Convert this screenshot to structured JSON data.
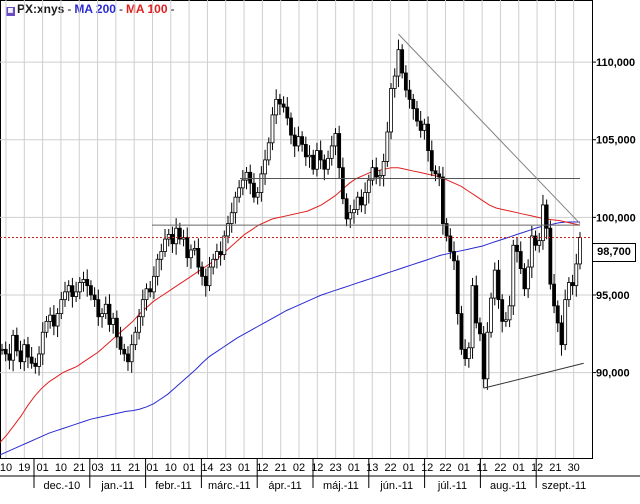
{
  "chart_data": {
    "type": "candlestick",
    "instrument": "PX:xnys",
    "last_price_label": "98,700",
    "yaxis": {
      "ticks": [
        90000,
        95000,
        100000,
        105000,
        110000
      ],
      "tick_labels": [
        "90,000",
        "95,000",
        "100,000",
        "105,000",
        "110,000"
      ],
      "ylim": [
        84500,
        114000
      ],
      "position": "right"
    },
    "xaxis": {
      "day_labels": [
        "10",
        "19",
        "01",
        "10",
        "21",
        "03",
        "11",
        "21",
        "01",
        "10",
        "01",
        "14",
        "23",
        "01",
        "12",
        "21",
        "02",
        "12",
        "23",
        "01",
        "13",
        "22",
        "01",
        "12",
        "22",
        "01",
        "11",
        "22",
        "01",
        "12",
        "21",
        "30"
      ],
      "month_labels": [
        "dec.-10",
        "jan.-11",
        "febr.-11",
        "márc.-11",
        "ápr.-11",
        "máj.-11",
        "jún.-11",
        "júl.-11",
        "aug.-11",
        "szept.-11"
      ]
    },
    "grid": true,
    "colors": {
      "candle": "#000000",
      "ma200": "#2a2ad4",
      "ma100": "#e02020",
      "level": "#cc2020",
      "trend": "#808080"
    },
    "series": [
      {
        "name": "",
        "type": "ohlc",
        "close": [
          91500,
          91200,
          90800,
          92400,
          91400,
          90700,
          91800,
          91000,
          90600,
          90400,
          91200,
          92600,
          93300,
          93700,
          93000,
          93800,
          94700,
          95200,
          95600,
          94900,
          95200,
          95800,
          96000,
          95600,
          95000,
          94700,
          93600,
          93800,
          94400,
          93100,
          93500,
          92300,
          91500,
          91200,
          90700,
          91800,
          92600,
          93600,
          94700,
          95400,
          95200,
          96200,
          97300,
          97800,
          98600,
          98900,
          98300,
          99300,
          98600,
          98700,
          97400,
          97900,
          98000,
          96800,
          96200,
          95600,
          96800,
          97300,
          97800,
          97600,
          98800,
          99600,
          100300,
          101300,
          101900,
          102400,
          102900,
          102200,
          101300,
          101600,
          102800,
          103700,
          104800,
          106600,
          107600,
          107300,
          107100,
          106400,
          105300,
          104600,
          105200,
          104700,
          103900,
          104000,
          103100,
          104300,
          103700,
          103100,
          103800,
          104600,
          105400,
          103200,
          101200,
          99900,
          100300,
          100500,
          101300,
          100800,
          101600,
          102400,
          103200,
          102600,
          102700,
          103600,
          105500,
          108300,
          109100,
          110800,
          109300,
          108200,
          107600,
          107000,
          106200,
          105600,
          106000,
          104300,
          103000,
          102800,
          102600,
          99600,
          98800,
          97800,
          97200,
          93800,
          91500,
          90900,
          91600,
          95600,
          93200,
          92500,
          89600,
          92600,
          94800,
          96600,
          94700,
          93300,
          93400,
          94300,
          98200,
          97800,
          96700,
          95400,
          96800,
          98800,
          98200,
          98500,
          100800,
          99300,
          95700,
          94300,
          93200,
          91800,
          94700,
          95800,
          95600,
          97000,
          98700
        ]
      },
      {
        "name": "MA 200",
        "close": [
          84700,
          84900,
          85100,
          85300,
          85500,
          85700,
          85900,
          86100,
          86250,
          86400,
          86550,
          86700,
          86850,
          87000,
          87100,
          87200,
          87300,
          87400,
          87500,
          87550,
          87650,
          87800,
          88000,
          88300,
          88600,
          89000,
          89400,
          89800,
          90200,
          90650,
          91050,
          91350,
          91650,
          91950,
          92250,
          92500,
          92750,
          93000,
          93250,
          93500,
          93750,
          94000,
          94200,
          94400,
          94600,
          94800,
          95000,
          95150,
          95300,
          95450,
          95600,
          95750,
          95900,
          96050,
          96200,
          96350,
          96500,
          96650,
          96800,
          96950,
          97100,
          97250,
          97400,
          97550,
          97650,
          97750,
          97850,
          97950,
          98050,
          98150,
          98300,
          98450,
          98600,
          98750,
          98900,
          99050,
          99200,
          99350,
          99450,
          99550,
          99650,
          99700,
          99700,
          99700
        ]
      },
      {
        "name": "MA 100",
        "close": [
          85500,
          86000,
          86600,
          87200,
          87900,
          88500,
          89000,
          89400,
          89700,
          90000,
          90200,
          90400,
          90700,
          91000,
          91300,
          91700,
          92100,
          92500,
          92900,
          93300,
          93800,
          94200,
          94600,
          94900,
          95200,
          95500,
          95800,
          96100,
          96400,
          96700,
          97000,
          97300,
          97700,
          98100,
          98500,
          98900,
          99200,
          99500,
          99700,
          99900,
          100000,
          100100,
          100200,
          100300,
          100400,
          100600,
          100800,
          101100,
          101400,
          101800,
          102200,
          102500,
          102700,
          102900,
          103000,
          103100,
          103200,
          103200,
          103100,
          103000,
          102900,
          102800,
          102700,
          102600,
          102400,
          102200,
          102000,
          101700,
          101400,
          101100,
          100800,
          100600,
          100500,
          100400,
          100300,
          100200,
          100100,
          100000,
          99900,
          99850,
          99800,
          99700,
          99600,
          99500
        ]
      }
    ],
    "levels": [
      {
        "type": "resistance",
        "value": 102500
      },
      {
        "type": "horizontal",
        "value": 99500
      },
      {
        "type": "last-price",
        "value": 98700
      }
    ]
  }
}
